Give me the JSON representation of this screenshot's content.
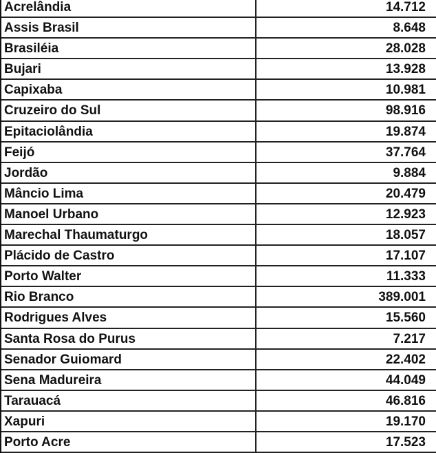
{
  "rows": [
    {
      "municipio": "Acrelândia",
      "valor": "14.712"
    },
    {
      "municipio": "Assis Brasil",
      "valor": "8.648"
    },
    {
      "municipio": "Brasiléia",
      "valor": "28.028"
    },
    {
      "municipio": "Bujari",
      "valor": "13.928"
    },
    {
      "municipio": "Capixaba",
      "valor": "10.981"
    },
    {
      "municipio": "Cruzeiro do Sul",
      "valor": "98.916"
    },
    {
      "municipio": "Epitaciolândia",
      "valor": "19.874"
    },
    {
      "municipio": "Feijó",
      "valor": "37.764"
    },
    {
      "municipio": "Jordão",
      "valor": "9.884"
    },
    {
      "municipio": "Mâncio Lima",
      "valor": "20.479"
    },
    {
      "municipio": "Manoel Urbano",
      "valor": "12.923"
    },
    {
      "municipio": "Marechal Thaumaturgo",
      "valor": "18.057"
    },
    {
      "municipio": "Plácido de Castro",
      "valor": "17.107"
    },
    {
      "municipio": "Porto Walter",
      "valor": "11.333"
    },
    {
      "municipio": "Rio Branco",
      "valor": "389.001"
    },
    {
      "municipio": "Rodrigues Alves",
      "valor": "15.560"
    },
    {
      "municipio": "Santa Rosa do Purus",
      "valor": "7.217"
    },
    {
      "municipio": "Senador Guiomard",
      "valor": "22.402"
    },
    {
      "municipio": "Sena Madureira",
      "valor": "44.049"
    },
    {
      "municipio": "Tarauacá",
      "valor": "46.816"
    },
    {
      "municipio": "Xapuri",
      "valor": "19.170"
    },
    {
      "municipio": "Porto Acre",
      "valor": "17.523"
    }
  ]
}
